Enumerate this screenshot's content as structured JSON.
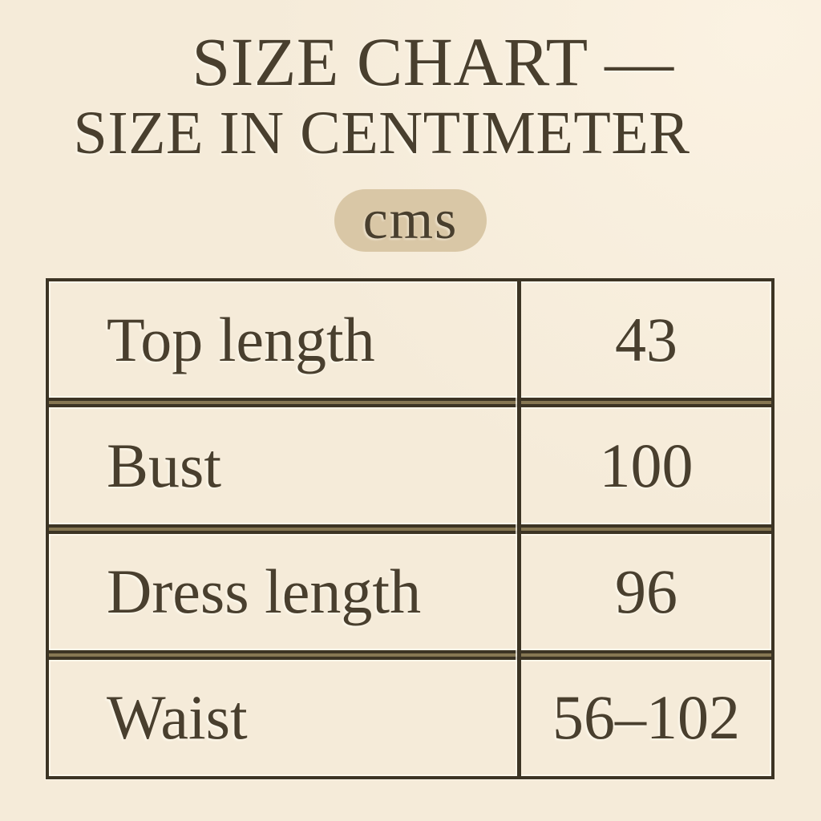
{
  "colors": {
    "background": "#f5ebd9",
    "background_highlight": "#fbf2e2",
    "ink": "#493f2e",
    "table_border": "#3c3424",
    "divider_middle": "#867753",
    "badge_background": "#d9c7a6"
  },
  "header": {
    "title": "SIZE CHART —",
    "subtitle": "SIZE IN CENTIMETER",
    "unit_badge": "cms"
  },
  "chart_data": {
    "type": "table",
    "title": "SIZE CHART —",
    "subtitle": "SIZE IN CENTIMETER",
    "unit": "cms",
    "columns": [
      "measurement",
      "value_cm"
    ],
    "rows": [
      {
        "label": "Top length",
        "value": "43"
      },
      {
        "label": "Bust",
        "value": "100"
      },
      {
        "label": "Dress length",
        "value": "96"
      },
      {
        "label": "Waist",
        "value": "56–102"
      }
    ]
  }
}
